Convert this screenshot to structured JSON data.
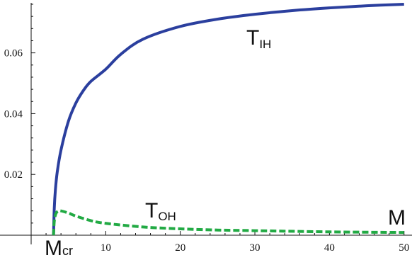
{
  "chart_data": {
    "type": "line",
    "title": "",
    "xlabel": "M",
    "ylabel": "",
    "xlim": [
      0,
      50.5
    ],
    "ylim": [
      0,
      0.076
    ],
    "x_ticks": [
      10,
      20,
      30,
      40,
      50
    ],
    "x_tick_labels": [
      "10",
      "20",
      "30",
      "40",
      "50"
    ],
    "y_ticks": [
      0.02,
      0.04,
      0.06
    ],
    "y_tick_labels": [
      "0.02",
      "0.04",
      "0.06"
    ],
    "x_marker": {
      "value": 3.0,
      "label_main": "M",
      "label_sub": "cr"
    },
    "grid": false,
    "legend": "none",
    "series": [
      {
        "name_main": "T",
        "name_sub": "IH",
        "style": "solid",
        "color": "#2b3f9e",
        "x": [
          3.0,
          3.1,
          3.25,
          3.5,
          4,
          5,
          6,
          7,
          8,
          10,
          12,
          15,
          20,
          25,
          30,
          35,
          40,
          45,
          50
        ],
        "y": [
          0,
          0.0088,
          0.0149,
          0.0208,
          0.028,
          0.0375,
          0.0435,
          0.0476,
          0.0506,
          0.0546,
          0.0595,
          0.0645,
          0.0687,
          0.0711,
          0.0727,
          0.0739,
          0.0748,
          0.0755,
          0.076
        ]
      },
      {
        "name_main": "T",
        "name_sub": "OH",
        "style": "dashed",
        "color": "#22aa44",
        "x": [
          3.0,
          3.1,
          3.3,
          3.6,
          4.0,
          5,
          6,
          8,
          10,
          15,
          20,
          25,
          30,
          40,
          50
        ],
        "y": [
          0,
          0.0045,
          0.007,
          0.0079,
          0.008,
          0.0073,
          0.0063,
          0.0048,
          0.0039,
          0.0027,
          0.0021,
          0.0017,
          0.0015,
          0.0011,
          0.0009
        ]
      }
    ]
  }
}
